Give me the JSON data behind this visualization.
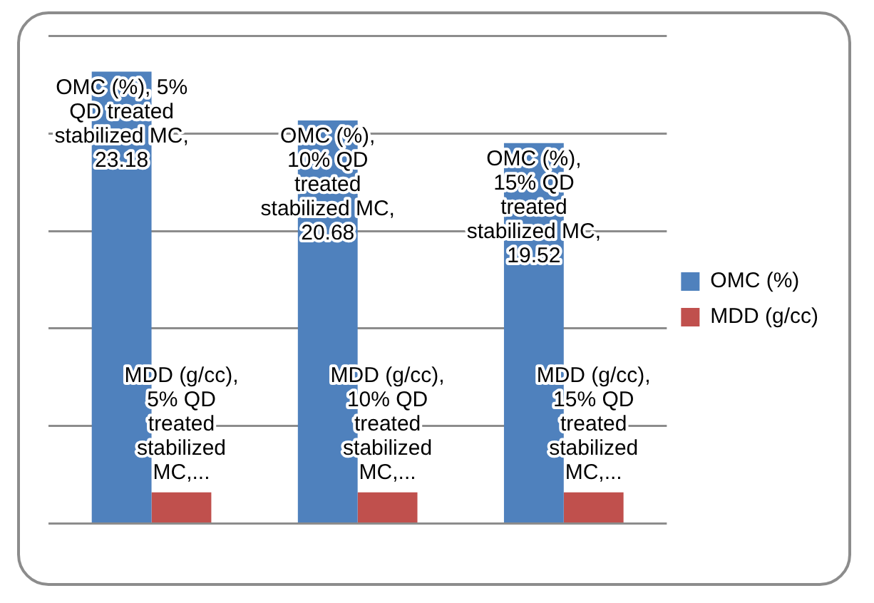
{
  "chart_data": {
    "type": "bar",
    "categories": [
      null,
      null,
      null
    ],
    "grid": "y",
    "legend": "right",
    "ylim": [
      0,
      25
    ],
    "yticks": [
      {
        "value": 0,
        "label": null
      },
      {
        "value": 5,
        "label": null
      },
      {
        "value": 10,
        "label": null
      },
      {
        "value": 15,
        "label": null
      },
      {
        "value": 20,
        "label": null
      },
      {
        "value": 25,
        "label": null
      }
    ],
    "series": [
      {
        "name": "OMC (%)",
        "color": "#4f81bd",
        "values": [
          23.18,
          20.68,
          19.52
        ],
        "value_labels": [
          "OMC (%), 5% QD treated stabilized MC, 23.18",
          "OMC (%), 10% QD treated stabilized MC, 20.68",
          "OMC (%), 15% QD treated stabilized MC, 19.52"
        ]
      },
      {
        "name": "MDD (g/cc)",
        "color": "#c0504d",
        "values": [
          1.6,
          1.6,
          1.6
        ],
        "value_labels": [
          "MDD (g/cc), 5% QD treated stabilized MC,...",
          "MDD (g/cc), 10% QD treated stabilized MC,...",
          "MDD (g/cc), 15% QD treated stabilized MC,..."
        ]
      }
    ]
  }
}
